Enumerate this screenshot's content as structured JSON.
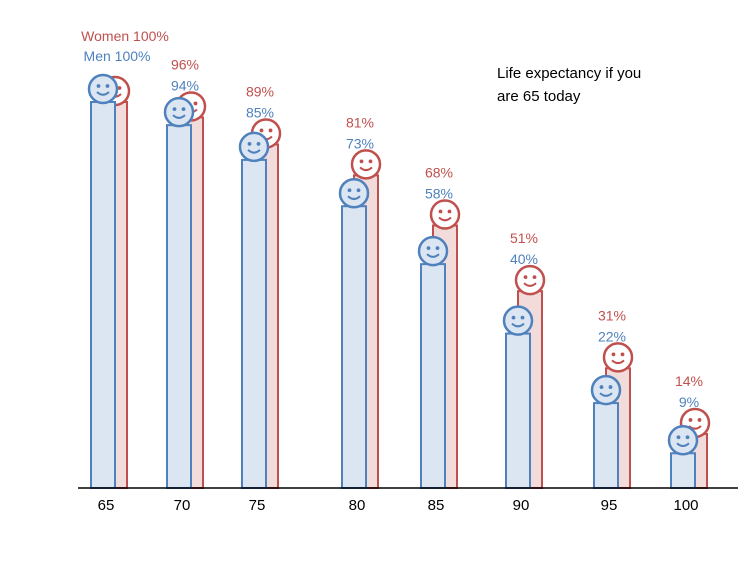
{
  "chart_data": {
    "type": "bar",
    "annotation": [
      "Life expectancy if you",
      "are 65 today"
    ],
    "categories": [
      "65",
      "70",
      "75",
      "80",
      "85",
      "90",
      "95",
      "100"
    ],
    "series": [
      {
        "name": "Women",
        "color": "#c0504d",
        "fill": "#f2dcdb",
        "values": [
          100,
          96,
          89,
          81,
          68,
          51,
          31,
          14
        ],
        "labels": [
          "Women 100%",
          "96%",
          "89%",
          "81%",
          "68%",
          "51%",
          "31%",
          "14%"
        ]
      },
      {
        "name": "Men",
        "color": "#4f81bd",
        "fill": "#dce6f2",
        "values": [
          100,
          94,
          85,
          73,
          58,
          40,
          22,
          9
        ],
        "labels": [
          "Men 100%",
          "94%",
          "85%",
          "73%",
          "58%",
          "40%",
          "22%",
          "9%"
        ]
      }
    ],
    "ylim": [
      0,
      100
    ],
    "icon": "smiley-face-icon"
  }
}
